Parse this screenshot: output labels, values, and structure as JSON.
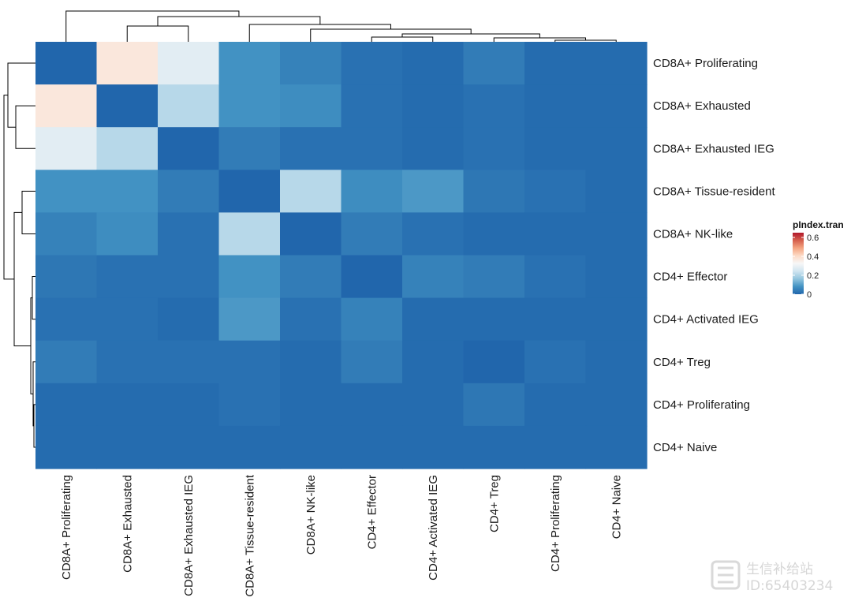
{
  "chart_data": {
    "type": "heatmap",
    "title": "",
    "row_labels": [
      "CD8A+ Proliferating",
      "CD8A+ Exhausted",
      "CD8A+ Exhausted IEG",
      "CD8A+ Tissue-resident",
      "CD8A+ NK-like",
      "CD4+ Effector",
      "CD4+ Activated IEG",
      "CD4+ Treg",
      "CD4+ Proliferating",
      "CD4+ Naive"
    ],
    "col_labels": [
      "CD8A+ Proliferating",
      "CD8A+ Exhausted",
      "CD8A+ Exhausted IEG",
      "CD8A+ Tissue-resident",
      "CD8A+ NK-like",
      "CD4+ Effector",
      "CD4+ Activated IEG",
      "CD4+ Treg",
      "CD4+ Proliferating",
      "CD4+ Naive"
    ],
    "values": [
      [
        0.0,
        0.37,
        0.28,
        0.08,
        0.05,
        0.02,
        0.01,
        0.04,
        0.01,
        0.01
      ],
      [
        0.37,
        0.0,
        0.21,
        0.08,
        0.07,
        0.02,
        0.01,
        0.02,
        0.01,
        0.01
      ],
      [
        0.28,
        0.21,
        0.0,
        0.04,
        0.02,
        0.02,
        0.01,
        0.02,
        0.01,
        0.01
      ],
      [
        0.08,
        0.08,
        0.04,
        0.0,
        0.21,
        0.07,
        0.09,
        0.03,
        0.02,
        0.01
      ],
      [
        0.05,
        0.07,
        0.02,
        0.21,
        0.0,
        0.04,
        0.02,
        0.01,
        0.01,
        0.01
      ],
      [
        0.03,
        0.02,
        0.02,
        0.08,
        0.04,
        0.0,
        0.05,
        0.04,
        0.02,
        0.01
      ],
      [
        0.02,
        0.02,
        0.01,
        0.09,
        0.02,
        0.05,
        0.01,
        0.01,
        0.01,
        0.01
      ],
      [
        0.04,
        0.02,
        0.02,
        0.02,
        0.01,
        0.04,
        0.01,
        0.0,
        0.02,
        0.01
      ],
      [
        0.01,
        0.01,
        0.01,
        0.02,
        0.01,
        0.01,
        0.01,
        0.03,
        0.01,
        0.01
      ],
      [
        0.01,
        0.01,
        0.01,
        0.01,
        0.01,
        0.01,
        0.01,
        0.01,
        0.01,
        0.01
      ]
    ],
    "legend": {
      "title": "pIndex.tran",
      "ticks": [
        0,
        0.2,
        0.4,
        0.6
      ],
      "range": [
        0,
        0.65
      ],
      "colors": [
        "#2166ac",
        "#4393c3",
        "#92c5de",
        "#d1e5f0",
        "#f7f7f7",
        "#fddbc7",
        "#f4a582",
        "#d6604d",
        "#b2182b"
      ]
    },
    "row_dendrogram": true,
    "col_dendrogram": true
  },
  "watermark": {
    "line1": "生信补给站",
    "line2": "ID:65403234"
  }
}
